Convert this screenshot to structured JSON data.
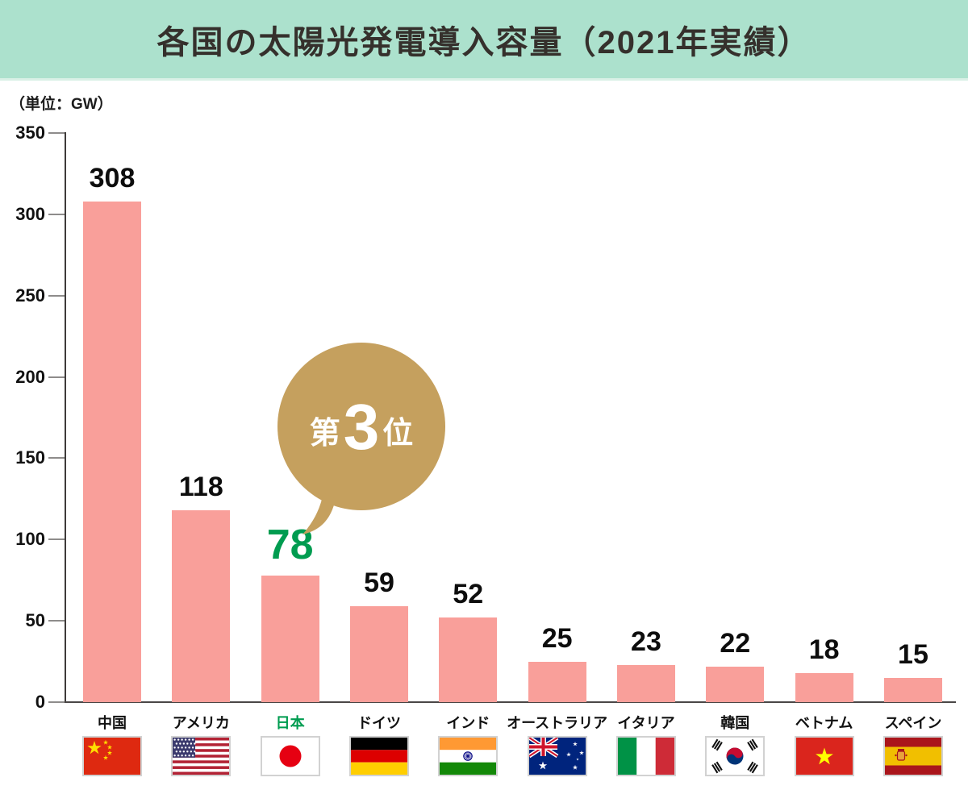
{
  "header": {
    "title": "各国の太陽光発電導入容量（2021年実績）"
  },
  "badge": {
    "prefix": "第",
    "rank": "3",
    "suffix": "位"
  },
  "colors": {
    "header_bg": "#ACE1CD",
    "bar": "#F99F9A",
    "highlight_green": "#009C50",
    "badge_gold": "#C5A05E",
    "title_text": "#35302C",
    "axis": "#3E3B3A"
  },
  "chart_data": {
    "type": "bar",
    "title": "各国の太陽光発電導入容量（2021年実績）",
    "unit_label": "（単位：GW）",
    "ylabel": "GW",
    "ylim": [
      0,
      350
    ],
    "yticks": [
      0,
      50,
      100,
      150,
      200,
      250,
      300,
      350
    ],
    "grid": false,
    "legend": "none",
    "categories": [
      "中国",
      "アメリカ",
      "日本",
      "ドイツ",
      "インド",
      "オーストラリア",
      "イタリア",
      "韓国",
      "ベトナム",
      "スペイン"
    ],
    "values": [
      308,
      118,
      78,
      59,
      52,
      25,
      23,
      22,
      18,
      15
    ],
    "flags": [
      "china",
      "usa",
      "japan",
      "germany",
      "india",
      "australia",
      "italy",
      "south-korea",
      "vietnam",
      "spain"
    ],
    "highlight": {
      "index": 2,
      "label": "日本",
      "annotation": "第3位"
    }
  }
}
